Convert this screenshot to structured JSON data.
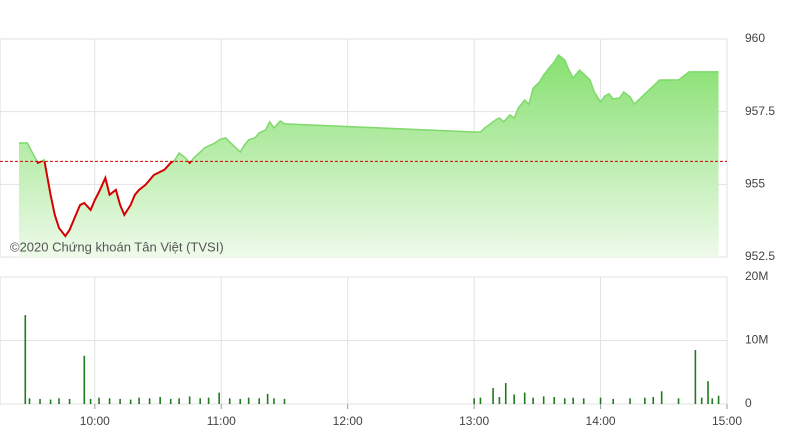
{
  "chart_data": [
    {
      "type": "area",
      "watermark": "©2020 Chứng khoán Tân Việt (TVSI)",
      "xlim": [
        "09:15",
        "15:00"
      ],
      "ylim": [
        952.5,
        960
      ],
      "yticks": [
        952.5,
        955,
        957.5,
        960
      ],
      "reference": 955.79,
      "up_color": "#7fd96b",
      "down_color": "#d40000",
      "x": [
        "09:24",
        "09:28",
        "09:31",
        "09:33",
        "09:36",
        "09:39",
        "09:41",
        "09:43",
        "09:46",
        "09:48",
        "09:51",
        "09:53",
        "09:55",
        "09:58",
        "10:00",
        "10:02",
        "10:05",
        "10:07",
        "10:10",
        "10:12",
        "10:14",
        "10:17",
        "10:19",
        "10:21",
        "10:24",
        "10:26",
        "10:28",
        "10:31",
        "10:33",
        "10:36",
        "10:38",
        "10:40",
        "10:43",
        "10:45",
        "10:47",
        "10:50",
        "10:52",
        "10:54",
        "10:57",
        "10:59",
        "11:02",
        "11:04",
        "11:06",
        "11:09",
        "11:11",
        "11:13",
        "11:16",
        "11:18",
        "11:21",
        "11:23",
        "11:25",
        "11:28",
        "11:30",
        "13:00",
        "13:03",
        "13:05",
        "13:07",
        "13:10",
        "13:12",
        "13:14",
        "13:17",
        "13:19",
        "13:21",
        "13:24",
        "13:26",
        "13:28",
        "13:31",
        "13:33",
        "13:36",
        "13:38",
        "13:40",
        "13:43",
        "13:45",
        "13:47",
        "13:50",
        "13:52",
        "13:55",
        "13:57",
        "14:00",
        "14:02",
        "14:04",
        "14:06",
        "14:09",
        "14:11",
        "14:14",
        "14:16",
        "14:18",
        "14:21",
        "14:23",
        "14:25",
        "14:28",
        "14:37",
        "14:42",
        "14:56"
      ],
      "values": [
        956.42,
        956.42,
        956.0,
        955.74,
        955.84,
        954.64,
        953.95,
        953.5,
        953.22,
        953.43,
        953.95,
        954.29,
        954.36,
        954.12,
        954.46,
        954.74,
        955.22,
        954.64,
        954.81,
        954.29,
        953.95,
        954.29,
        954.64,
        954.81,
        954.98,
        955.15,
        955.32,
        955.43,
        955.5,
        955.74,
        955.84,
        956.08,
        955.91,
        955.74,
        955.91,
        956.11,
        956.25,
        956.32,
        956.42,
        956.53,
        956.6,
        956.46,
        956.32,
        956.11,
        956.35,
        956.53,
        956.6,
        956.77,
        956.87,
        957.15,
        956.94,
        957.18,
        957.08,
        956.8,
        956.8,
        956.94,
        957.04,
        957.21,
        957.28,
        957.15,
        957.39,
        957.28,
        957.63,
        957.9,
        957.76,
        958.31,
        958.52,
        958.76,
        959.04,
        959.21,
        959.45,
        959.28,
        958.93,
        958.66,
        958.93,
        958.8,
        958.59,
        958.18,
        957.83,
        958.04,
        958.11,
        957.94,
        957.97,
        958.18,
        958.01,
        957.76,
        957.9,
        958.11,
        958.25,
        958.38,
        958.59,
        958.59,
        958.87,
        958.87
      ]
    },
    {
      "type": "bar",
      "xlim": [
        "09:15",
        "15:00"
      ],
      "xticks": [
        "10:00",
        "11:00",
        "12:00",
        "13:00",
        "14:00",
        "15:00"
      ],
      "ylim": [
        0,
        20000000
      ],
      "yticks": [
        0,
        {
          "value": 10000000,
          "label": "10M"
        },
        {
          "value": 20000000,
          "label": "20M"
        }
      ],
      "color": "#1f7a1f",
      "x": [
        "09:27",
        "09:29",
        "09:34",
        "09:39",
        "09:43",
        "09:48",
        "09:55",
        "09:58",
        "10:02",
        "10:07",
        "10:12",
        "10:17",
        "10:21",
        "10:26",
        "10:31",
        "10:36",
        "10:40",
        "10:45",
        "10:50",
        "10:54",
        "10:59",
        "11:04",
        "11:09",
        "11:13",
        "11:18",
        "11:22",
        "11:25",
        "11:30",
        "13:00",
        "13:03",
        "13:09",
        "13:12",
        "13:15",
        "13:19",
        "13:24",
        "13:28",
        "13:33",
        "13:38",
        "13:43",
        "13:47",
        "13:52",
        "14:00",
        "14:06",
        "14:14",
        "14:21",
        "14:25",
        "14:29",
        "14:37",
        "14:45",
        "14:48",
        "14:51",
        "14:53",
        "14:56"
      ],
      "values": [
        14000000,
        900000,
        800000,
        700000,
        900000,
        800000,
        7600000,
        800000,
        1000000,
        900000,
        800000,
        700000,
        1000000,
        900000,
        1100000,
        800000,
        900000,
        1200000,
        900000,
        1000000,
        1800000,
        900000,
        800000,
        1000000,
        900000,
        1600000,
        900000,
        800000,
        900000,
        1000000,
        2500000,
        1100000,
        3300000,
        1500000,
        1800000,
        1000000,
        1200000,
        1100000,
        900000,
        1000000,
        900000,
        1000000,
        800000,
        900000,
        1000000,
        1100000,
        2000000,
        900000,
        8500000,
        1000000,
        3600000,
        900000,
        1300000
      ]
    }
  ]
}
